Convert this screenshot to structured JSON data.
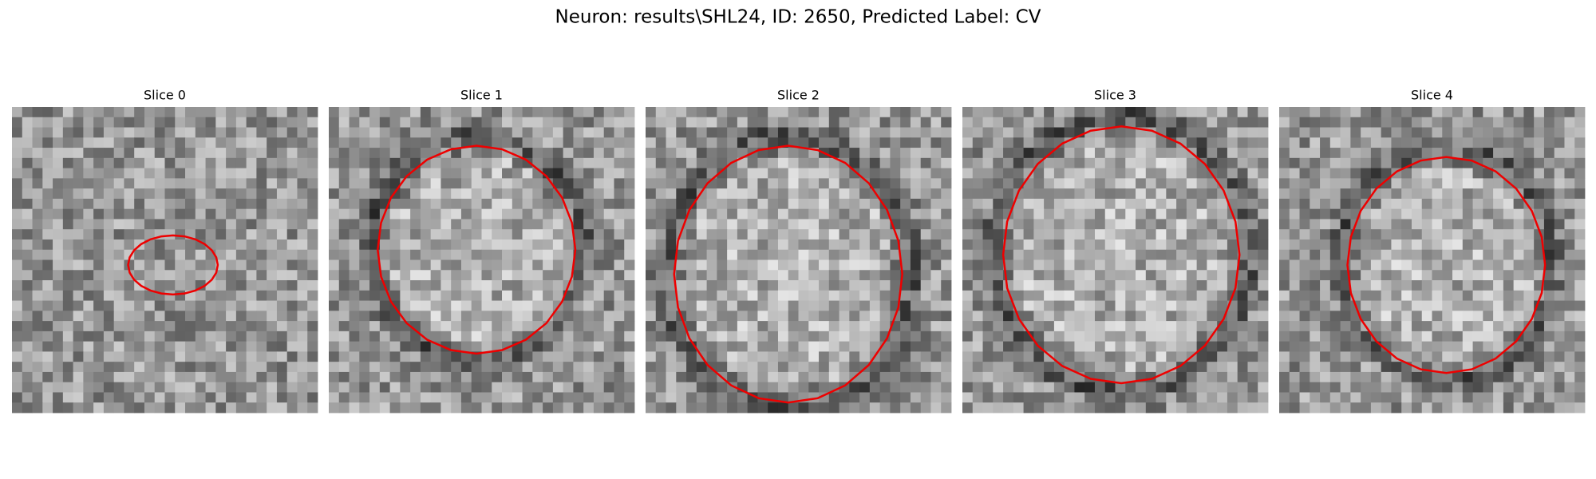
{
  "title": "Neuron: results\\SHL24, ID: 2650, Predicted Label: CV",
  "panels": [
    {
      "label": "Slice 0"
    },
    {
      "label": "Slice 1"
    },
    {
      "label": "Slice 2"
    },
    {
      "label": "Slice 3"
    },
    {
      "label": "Slice 4"
    }
  ]
}
